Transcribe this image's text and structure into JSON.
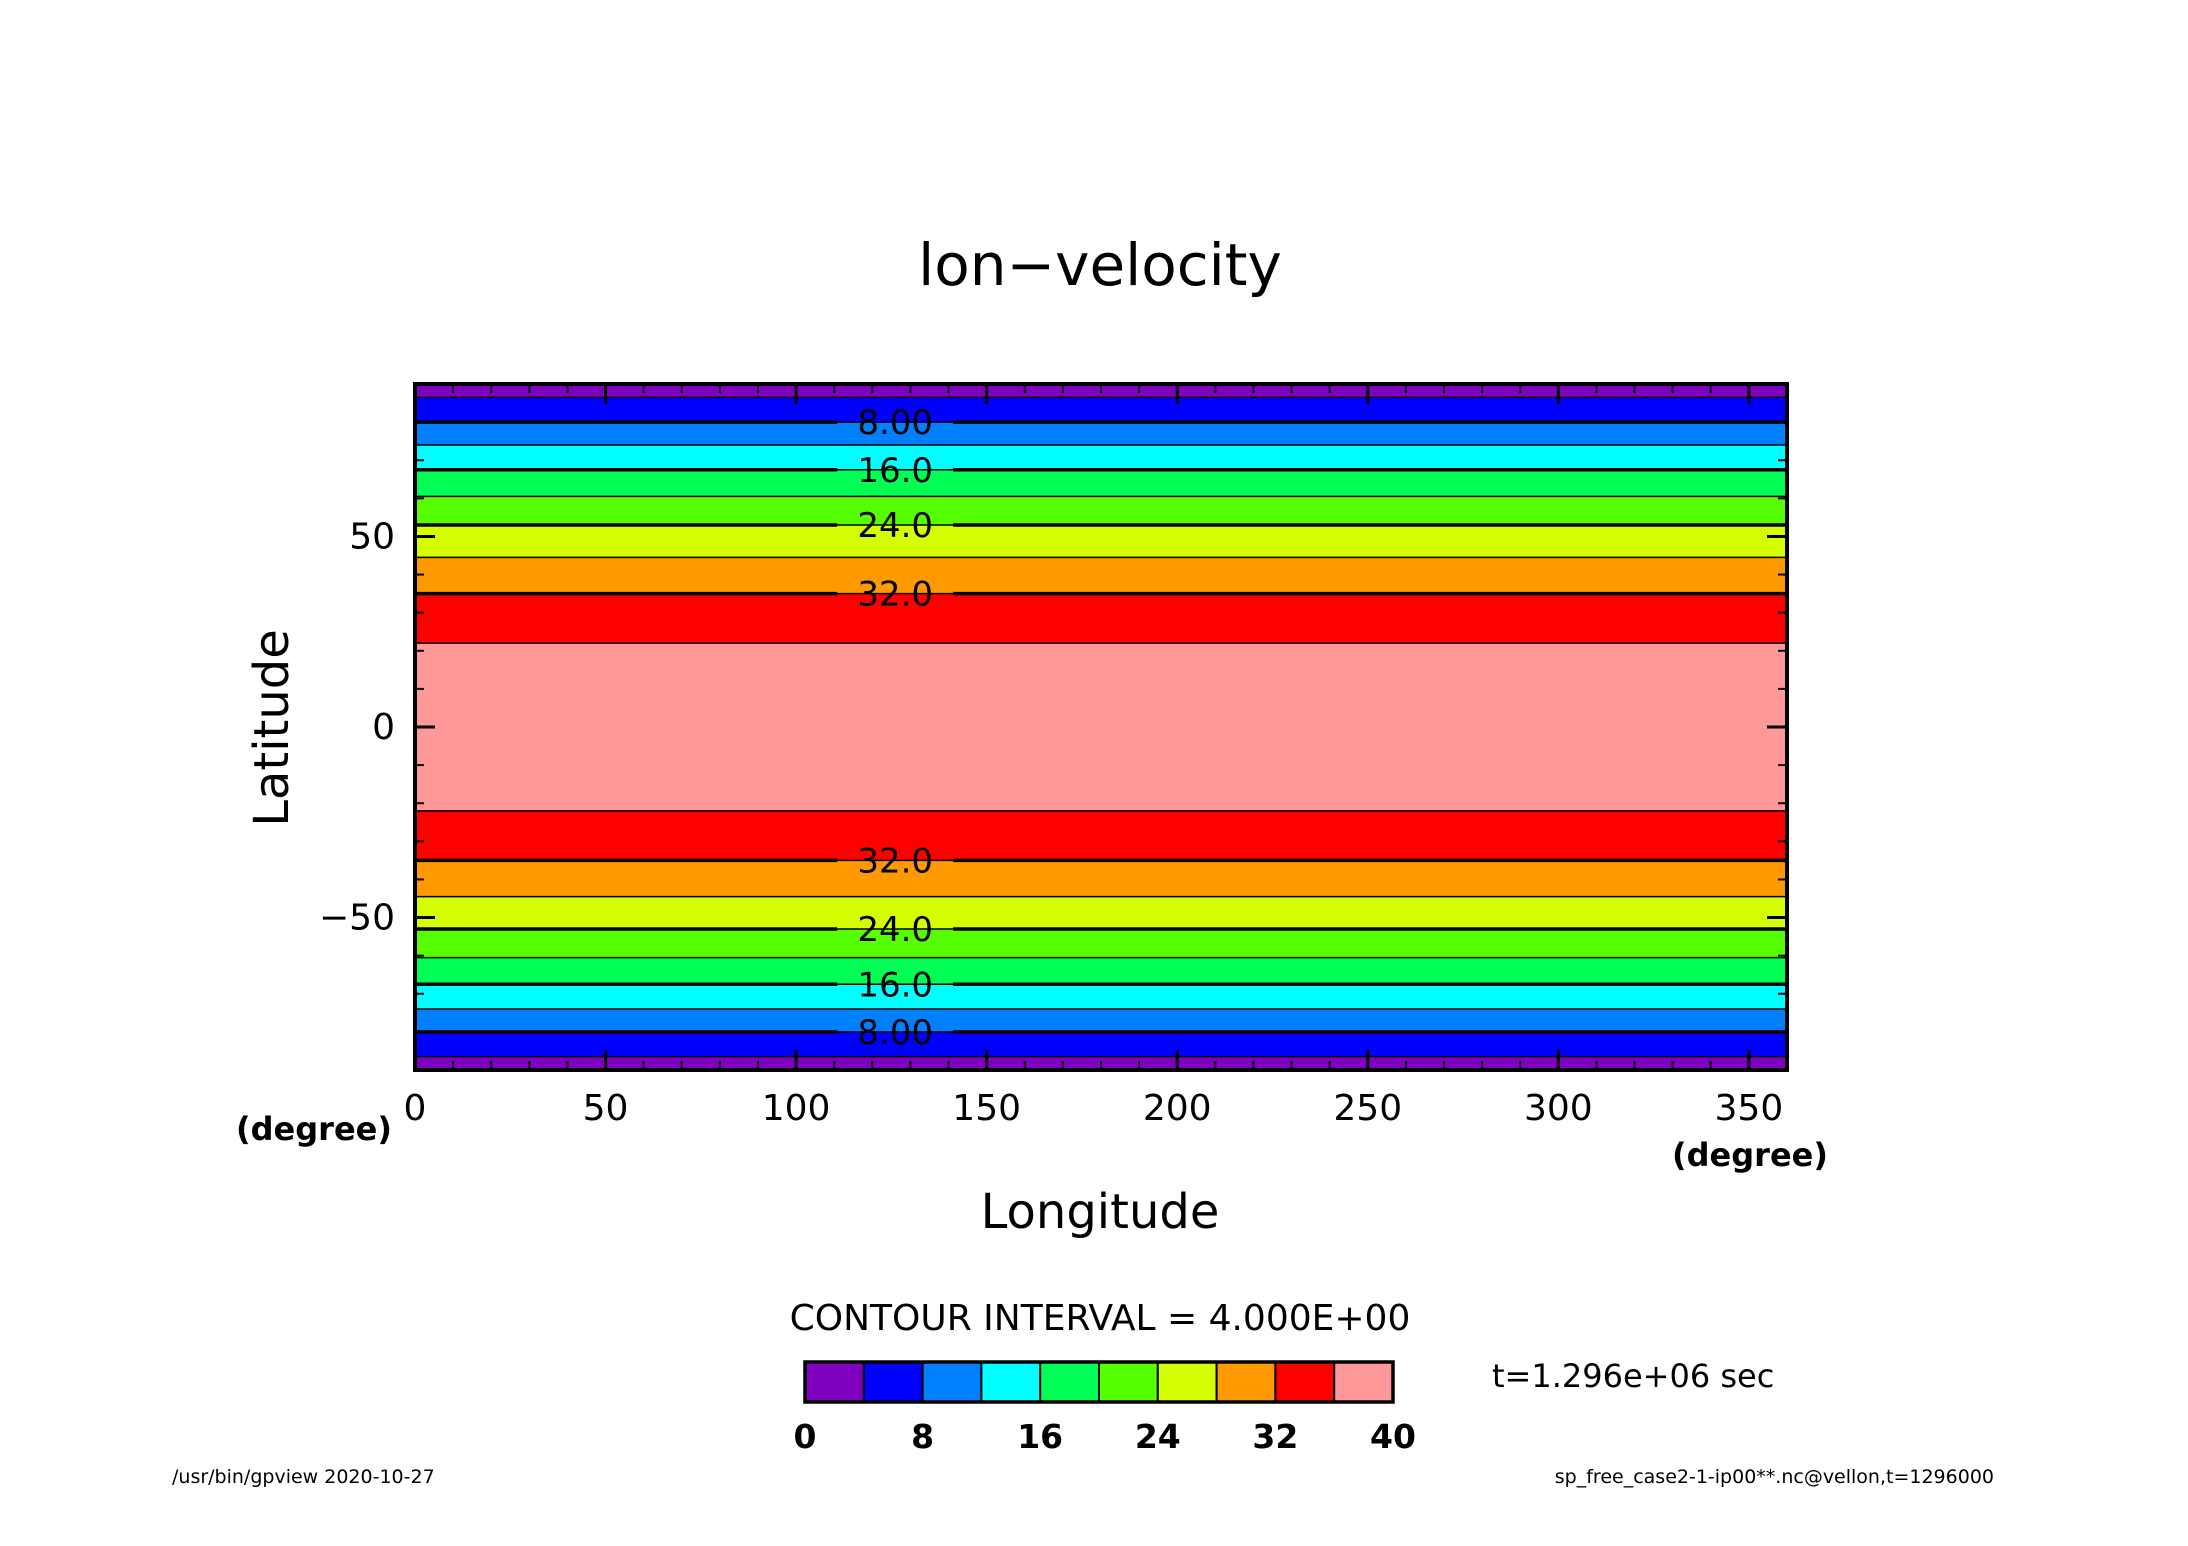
{
  "chart_data": {
    "type": "heatmap",
    "title": "lon−velocity",
    "xlabel": "Longitude",
    "ylabel": "Latitude",
    "x_units": "(degree)",
    "y_units": "(degree)",
    "xlim": [
      0,
      360
    ],
    "ylim": [
      -90,
      90
    ],
    "x_ticks": [
      0,
      50,
      100,
      150,
      200,
      250,
      300,
      350
    ],
    "y_ticks": [
      -50,
      0,
      50
    ],
    "x_tick_labels": [
      "0",
      "50",
      "100",
      "150",
      "200",
      "250",
      "300",
      "350"
    ],
    "y_tick_labels": [
      "−50",
      "0",
      "50"
    ],
    "bands": [
      {
        "from": -90,
        "to": -86.5,
        "color": "#7f00bf"
      },
      {
        "from": -86.5,
        "to": -80,
        "color": "#0000ff"
      },
      {
        "from": -80,
        "to": -74,
        "color": "#0080ff"
      },
      {
        "from": -74,
        "to": -67.5,
        "color": "#00ffff"
      },
      {
        "from": -67.5,
        "to": -60.5,
        "color": "#00ff55"
      },
      {
        "from": -60.5,
        "to": -53,
        "color": "#55ff00"
      },
      {
        "from": -53,
        "to": -44.5,
        "color": "#d4ff00"
      },
      {
        "from": -44.5,
        "to": -35,
        "color": "#ff9900"
      },
      {
        "from": -35,
        "to": -22,
        "color": "#ff0000"
      },
      {
        "from": -22,
        "to": 22,
        "color": "#ff9999"
      },
      {
        "from": 22,
        "to": 35,
        "color": "#ff0000"
      },
      {
        "from": 35,
        "to": 44.5,
        "color": "#ff9900"
      },
      {
        "from": 44.5,
        "to": 53,
        "color": "#d4ff00"
      },
      {
        "from": 53,
        "to": 60.5,
        "color": "#55ff00"
      },
      {
        "from": 60.5,
        "to": 67.5,
        "color": "#00ff55"
      },
      {
        "from": 67.5,
        "to": 74,
        "color": "#00ffff"
      },
      {
        "from": 74,
        "to": 80,
        "color": "#0080ff"
      },
      {
        "from": 80,
        "to": 86.5,
        "color": "#0000ff"
      },
      {
        "from": 86.5,
        "to": 90,
        "color": "#7f00bf"
      }
    ],
    "contour_labels": [
      {
        "lat": 80,
        "text": "8.00"
      },
      {
        "lat": 67.5,
        "text": "16.0"
      },
      {
        "lat": 53,
        "text": "24.0"
      },
      {
        "lat": 35,
        "text": "32.0"
      },
      {
        "lat": -35,
        "text": "32.0"
      },
      {
        "lat": -53,
        "text": "24.0"
      },
      {
        "lat": -67.5,
        "text": "16.0"
      },
      {
        "lat": -80,
        "text": "8.00"
      }
    ],
    "contour_label_lon": 126,
    "contour_interval_text": "CONTOUR INTERVAL = 4.000E+00",
    "colorbar": {
      "colors": [
        "#7f00bf",
        "#0000ff",
        "#0080ff",
        "#00ffff",
        "#00ff55",
        "#55ff00",
        "#d4ff00",
        "#ff9900",
        "#ff0000",
        "#ff9999"
      ],
      "tick_values": [
        0,
        8,
        16,
        24,
        32,
        40
      ],
      "tick_labels": [
        "0",
        "8",
        "16",
        "24",
        "32",
        "40"
      ]
    },
    "time_text": "t=1.296e+06 sec",
    "footer_left": "/usr/bin/gpview   2020-10-27",
    "footer_right": "sp_free_case2-1-ip00**.nc@vellon,t=1296000"
  }
}
